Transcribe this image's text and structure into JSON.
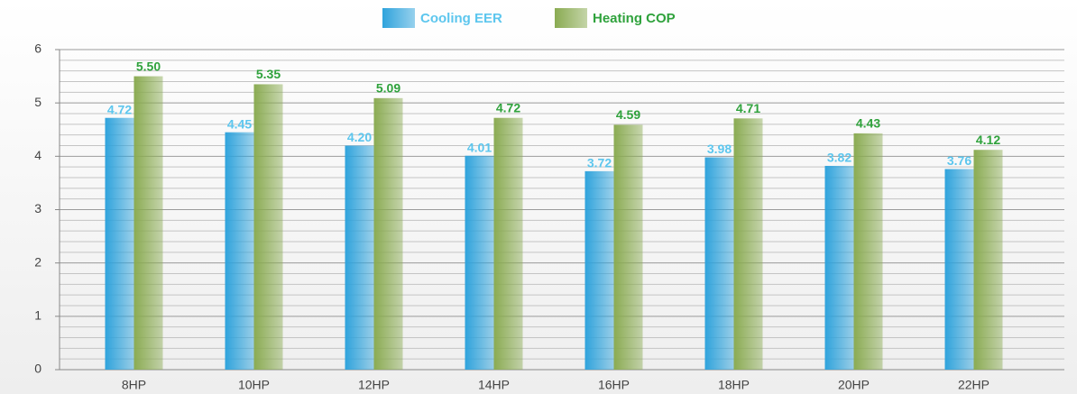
{
  "chart_data": {
    "type": "bar",
    "categories": [
      "8HP",
      "10HP",
      "12HP",
      "14HP",
      "16HP",
      "18HP",
      "20HP",
      "22HP"
    ],
    "series": [
      {
        "name": "Cooling EER",
        "color": "#2fa3dc",
        "label_color": "#5cc6ee",
        "values": [
          4.72,
          4.45,
          4.2,
          4.01,
          3.72,
          3.98,
          3.82,
          3.76
        ],
        "value_labels": [
          "4.72",
          "4.45",
          "4.20",
          "4.01",
          "3.72",
          "3.98",
          "3.82",
          "3.76"
        ]
      },
      {
        "name": "Heating COP",
        "color": "#8aab52",
        "label_color": "#2fa23c",
        "values": [
          5.5,
          5.35,
          5.09,
          4.72,
          4.59,
          4.71,
          4.43,
          4.12
        ],
        "value_labels": [
          "5.50",
          "5.35",
          "5.09",
          "4.72",
          "4.59",
          "4.71",
          "4.43",
          "4.12"
        ]
      }
    ],
    "ylim": [
      0,
      6
    ],
    "yticks": [
      0,
      1,
      2,
      3,
      4,
      5,
      6
    ],
    "minor_yticks": [
      0.2,
      0.4,
      0.6,
      0.8,
      1.2,
      1.4,
      1.6,
      1.8,
      2.2,
      2.4,
      2.6,
      2.8,
      3.2,
      3.4,
      3.6,
      3.8,
      4.2,
      4.4,
      4.6,
      4.8,
      5.2,
      5.4,
      5.6,
      5.8
    ],
    "grid": true,
    "legend": "top"
  }
}
